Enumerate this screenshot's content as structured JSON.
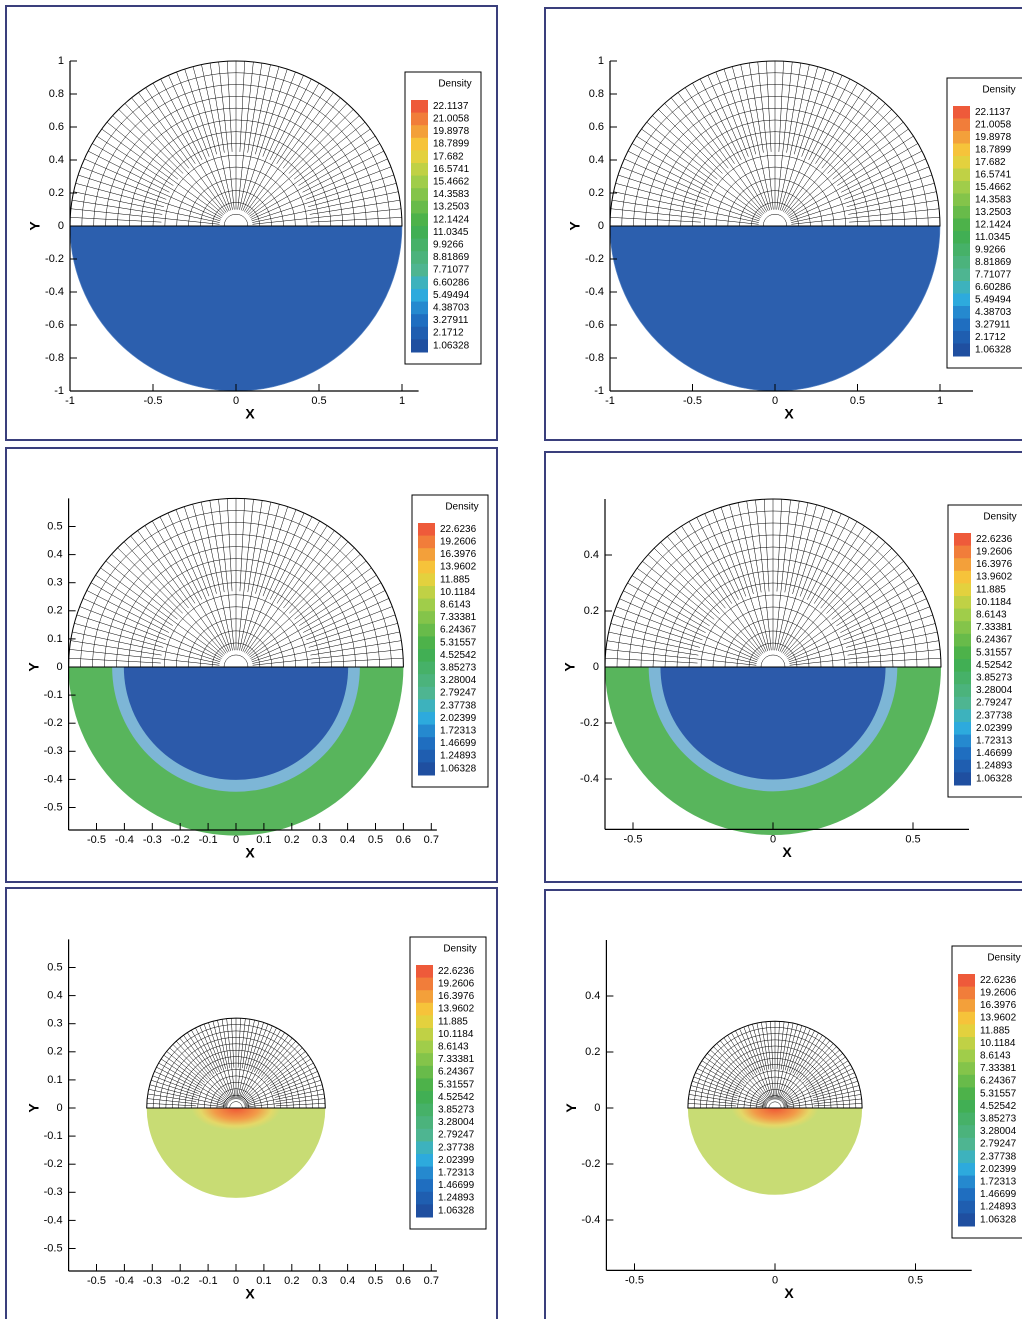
{
  "chart_data": [
    {
      "type": "contour",
      "xlabel": "X",
      "ylabel": "Y",
      "xlim": [
        -1,
        1.1
      ],
      "ylim": [
        -1,
        1
      ],
      "xticks": [
        -1,
        -0.5,
        0,
        0.5,
        1
      ],
      "yticks": [
        -1,
        -0.8,
        -0.6,
        -0.4,
        -0.2,
        0,
        0.2,
        0.4,
        0.6,
        0.8,
        1
      ],
      "legend": {
        "title": "Density",
        "levels": [
          22.1137,
          21.0058,
          19.8978,
          18.7899,
          17.682,
          16.5741,
          15.4662,
          14.3583,
          13.2503,
          12.1424,
          11.0345,
          9.9266,
          8.81869,
          7.71077,
          6.60286,
          5.49494,
          4.38703,
          3.27911,
          2.1712,
          1.06328
        ]
      }
    },
    {
      "type": "contour",
      "xlabel": "X",
      "ylabel": "Y",
      "xlim": [
        -1,
        1.2
      ],
      "ylim": [
        -1,
        1
      ],
      "xticks": [
        -1,
        -0.5,
        0,
        0.5,
        1
      ],
      "yticks": [
        -1,
        -0.8,
        -0.6,
        -0.4,
        -0.2,
        0,
        0.2,
        0.4,
        0.6,
        0.8,
        1
      ],
      "legend": {
        "title": "Density",
        "levels": [
          22.1137,
          21.0058,
          19.8978,
          18.7899,
          17.682,
          16.5741,
          15.4662,
          14.3583,
          13.2503,
          12.1424,
          11.0345,
          9.9266,
          8.81869,
          7.71077,
          6.60286,
          5.49494,
          4.38703,
          3.27911,
          2.1712,
          1.06328
        ]
      }
    },
    {
      "type": "contour",
      "xlabel": "X",
      "ylabel": "Y",
      "xlim": [
        -0.6,
        0.72
      ],
      "ylim": [
        -0.58,
        0.6
      ],
      "xticks": [
        -0.5,
        -0.4,
        -0.3,
        -0.2,
        -0.1,
        0,
        0.1,
        0.2,
        0.3,
        0.4,
        0.5,
        0.6,
        0.7
      ],
      "yticks": [
        -0.5,
        -0.4,
        -0.3,
        -0.2,
        -0.1,
        0,
        0.1,
        0.2,
        0.3,
        0.4,
        0.5
      ],
      "legend": {
        "title": "Density",
        "levels": [
          22.6236,
          19.2606,
          16.3976,
          13.9602,
          11.885,
          10.1184,
          8.6143,
          7.33381,
          6.24367,
          5.31557,
          4.52542,
          3.85273,
          3.28004,
          2.79247,
          2.37738,
          2.02399,
          1.72313,
          1.46699,
          1.24893,
          1.06328
        ]
      }
    },
    {
      "type": "contour",
      "xlabel": "X",
      "ylabel": "Y",
      "xlim": [
        -0.6,
        0.7
      ],
      "ylim": [
        -0.58,
        0.6
      ],
      "xticks": [
        -0.5,
        0,
        0.5
      ],
      "yticks": [
        -0.4,
        -0.2,
        0,
        0.2,
        0.4
      ],
      "legend": {
        "title": "Density",
        "levels": [
          22.6236,
          19.2606,
          16.3976,
          13.9602,
          11.885,
          10.1184,
          8.6143,
          7.33381,
          6.24367,
          5.31557,
          4.52542,
          3.85273,
          3.28004,
          2.79247,
          2.37738,
          2.02399,
          1.72313,
          1.46699,
          1.24893,
          1.06328
        ]
      }
    },
    {
      "type": "contour",
      "xlabel": "X",
      "ylabel": "Y",
      "xlim": [
        -0.6,
        0.72
      ],
      "ylim": [
        -0.58,
        0.6
      ],
      "xticks": [
        -0.5,
        -0.4,
        -0.3,
        -0.2,
        -0.1,
        0,
        0.1,
        0.2,
        0.3,
        0.4,
        0.5,
        0.6,
        0.7
      ],
      "yticks": [
        -0.5,
        -0.4,
        -0.3,
        -0.2,
        -0.1,
        0,
        0.1,
        0.2,
        0.3,
        0.4,
        0.5
      ],
      "legend": {
        "title": "Density",
        "levels": [
          22.6236,
          19.2606,
          16.3976,
          13.9602,
          11.885,
          10.1184,
          8.6143,
          7.33381,
          6.24367,
          5.31557,
          4.52542,
          3.85273,
          3.28004,
          2.79247,
          2.37738,
          2.02399,
          1.72313,
          1.46699,
          1.24893,
          1.06328
        ]
      }
    },
    {
      "type": "contour",
      "xlabel": "X",
      "ylabel": "Y",
      "xlim": [
        -0.6,
        0.7
      ],
      "ylim": [
        -0.58,
        0.6
      ],
      "xticks": [
        -0.5,
        0,
        0.5
      ],
      "yticks": [
        -0.4,
        -0.2,
        0,
        0.2,
        0.4
      ],
      "legend": {
        "title": "Density",
        "levels": [
          22.6236,
          19.2606,
          16.3976,
          13.9602,
          11.885,
          10.1184,
          8.6143,
          7.33381,
          6.24367,
          5.31557,
          4.52542,
          3.85273,
          3.28004,
          2.79247,
          2.37738,
          2.02399,
          1.72313,
          1.46699,
          1.24893,
          1.06328
        ]
      }
    }
  ]
}
